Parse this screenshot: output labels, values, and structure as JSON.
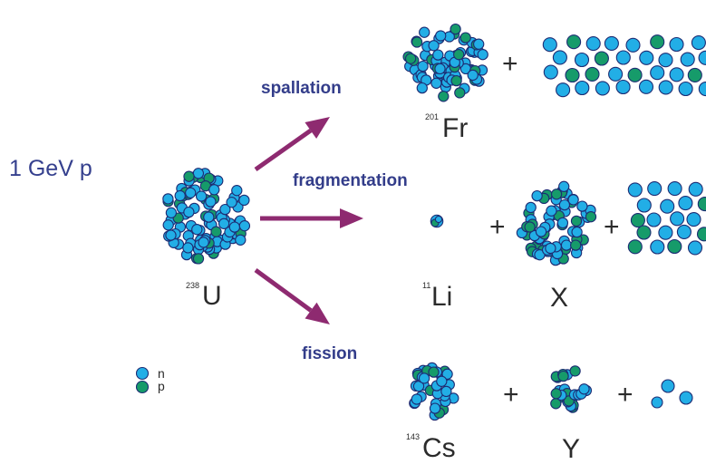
{
  "projectile": "1 GeV p",
  "target": {
    "mass": "238",
    "symbol": "U"
  },
  "processes": {
    "spallation": "spallation",
    "fragmentation": "fragmentation",
    "fission": "fission"
  },
  "products": {
    "spallation": {
      "mass": "201",
      "symbol": "Fr"
    },
    "fragmentation_light": {
      "mass": "11",
      "symbol": "Li"
    },
    "fragmentation_heavy": {
      "symbol": "X"
    },
    "fission_1": {
      "mass": "143",
      "symbol": "Cs"
    },
    "fission_2": {
      "symbol": "Y"
    }
  },
  "operators": {
    "plus": "+"
  },
  "legend": {
    "neutron": "n",
    "proton": "p"
  },
  "colors": {
    "neutron": "#22aee6",
    "proton": "#169b6a",
    "outline": "#1d2c73",
    "arrow": "#8e2a70"
  }
}
